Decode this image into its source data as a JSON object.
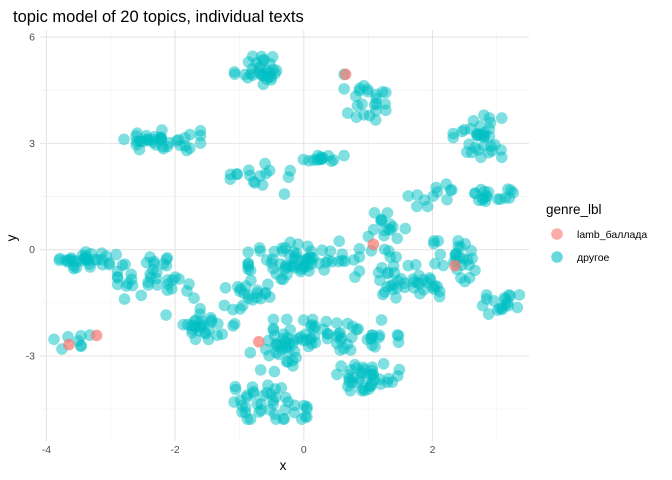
{
  "chart_data": {
    "type": "scatter",
    "title": "topic model of 20 topics, individual texts",
    "xlabel": "x",
    "ylabel": "y",
    "xlim": [
      -4.1,
      3.5
    ],
    "ylim": [
      -5.4,
      6.2
    ],
    "x_ticks": [
      -4,
      -2,
      0,
      2
    ],
    "x_tick_labels": [
      "-4",
      "-2",
      "0",
      "2"
    ],
    "y_ticks": [
      -3,
      0,
      3,
      6
    ],
    "y_tick_labels": [
      "-3",
      "0",
      "3",
      "6"
    ],
    "grid": true,
    "legend": {
      "title": "genre_lbl",
      "position": "right",
      "entries": [
        {
          "label": "lamb_баллада",
          "color": "#F8766D"
        },
        {
          "label": "другое",
          "color": "#00BFC4"
        }
      ]
    },
    "series": [
      {
        "name": "lamb_баллада",
        "color": "#F8766D",
        "points": [
          [
            0.65,
            4.95
          ],
          [
            1.08,
            0.15
          ],
          [
            -3.22,
            -2.42
          ],
          [
            -3.65,
            -2.68
          ],
          [
            -0.7,
            -2.6
          ],
          [
            2.35,
            -0.45
          ]
        ]
      },
      {
        "name": "другое",
        "color": "#00BFC4",
        "clusters": [
          {
            "cx": -0.7,
            "cy": 5.1,
            "rx": 0.35,
            "ry": 0.4,
            "n": 32
          },
          {
            "cx": 0.95,
            "cy": 4.3,
            "rx": 0.3,
            "ry": 0.6,
            "n": 24
          },
          {
            "cx": -2.2,
            "cy": 3.05,
            "rx": 0.55,
            "ry": 0.3,
            "n": 38
          },
          {
            "cx": 2.7,
            "cy": 3.2,
            "rx": 0.35,
            "ry": 0.55,
            "n": 34
          },
          {
            "cx": 0.3,
            "cy": 2.6,
            "rx": 0.3,
            "ry": 0.12,
            "n": 14
          },
          {
            "cx": -0.6,
            "cy": 2.0,
            "rx": 0.6,
            "ry": 0.4,
            "n": 16
          },
          {
            "cx": 2.0,
            "cy": 1.6,
            "rx": 0.35,
            "ry": 0.35,
            "n": 12
          },
          {
            "cx": 2.9,
            "cy": 1.55,
            "rx": 0.35,
            "ry": 0.2,
            "n": 18
          },
          {
            "cx": -3.35,
            "cy": -0.3,
            "rx": 0.5,
            "ry": 0.22,
            "n": 34
          },
          {
            "cx": -2.3,
            "cy": -0.8,
            "rx": 0.55,
            "ry": 0.55,
            "n": 38
          },
          {
            "cx": 0.0,
            "cy": -0.3,
            "rx": 0.8,
            "ry": 0.5,
            "n": 70
          },
          {
            "cx": -0.85,
            "cy": -1.3,
            "rx": 0.4,
            "ry": 0.4,
            "n": 22
          },
          {
            "cx": 1.2,
            "cy": 0.5,
            "rx": 0.35,
            "ry": 0.5,
            "n": 18
          },
          {
            "cx": 1.7,
            "cy": -0.8,
            "rx": 0.55,
            "ry": 0.55,
            "n": 40
          },
          {
            "cx": 2.4,
            "cy": -0.4,
            "rx": 0.35,
            "ry": 0.6,
            "n": 28
          },
          {
            "cx": -1.6,
            "cy": -2.1,
            "rx": 0.5,
            "ry": 0.4,
            "n": 30
          },
          {
            "cx": 0.5,
            "cy": -2.4,
            "rx": 0.9,
            "ry": 0.4,
            "n": 60
          },
          {
            "cx": -0.4,
            "cy": -2.9,
            "rx": 0.4,
            "ry": 0.5,
            "n": 26
          },
          {
            "cx": 1.0,
            "cy": -3.6,
            "rx": 0.45,
            "ry": 0.35,
            "n": 40
          },
          {
            "cx": -0.6,
            "cy": -4.3,
            "rx": 0.6,
            "ry": 0.45,
            "n": 44
          },
          {
            "cx": 3.1,
            "cy": -1.6,
            "rx": 0.3,
            "ry": 0.3,
            "n": 18
          },
          {
            "cx": -3.6,
            "cy": -2.6,
            "rx": 0.3,
            "ry": 0.25,
            "n": 8
          }
        ]
      }
    ]
  }
}
